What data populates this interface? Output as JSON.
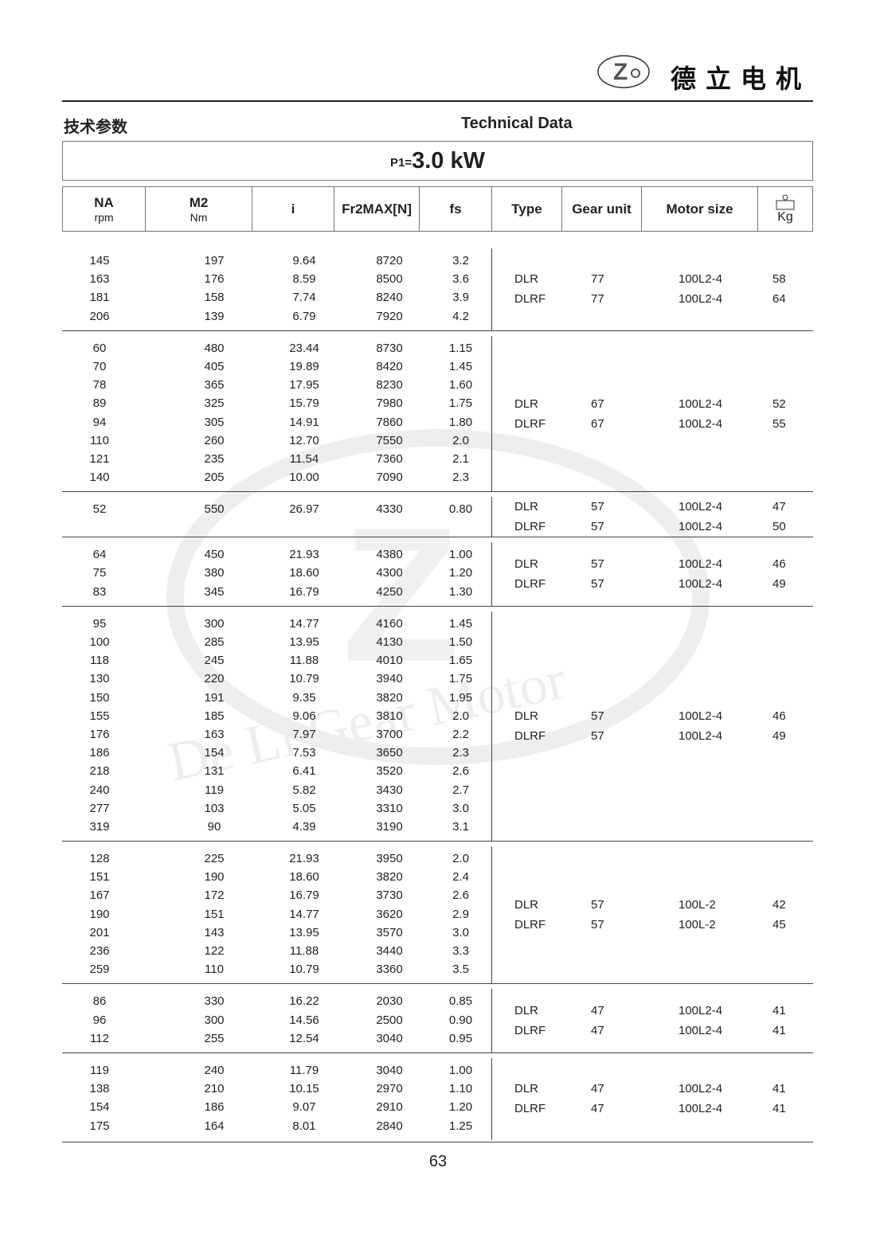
{
  "header": {
    "brand": "德立电机",
    "logo_text": "De Li Gear Motor",
    "title_cn": "技术参数",
    "title_en": "Technical Data"
  },
  "power": {
    "label": "P1=",
    "value": "3.0 kW"
  },
  "columns": [
    {
      "label": "NA",
      "unit": "rpm"
    },
    {
      "label": "M2",
      "unit": "Nm"
    },
    {
      "label": "i"
    },
    {
      "label": "Fr2MAX[N]"
    },
    {
      "label": "fs"
    },
    {
      "label": "Type"
    },
    {
      "label": "Gear unit"
    },
    {
      "label": "Motor size"
    },
    {
      "label": "Kg"
    }
  ],
  "groups": [
    {
      "rows": [
        [
          "145",
          "197",
          "9.64",
          "8720",
          "3.2"
        ],
        [
          "163",
          "176",
          "8.59",
          "8500",
          "3.6"
        ],
        [
          "181",
          "158",
          "7.74",
          "8240",
          "3.9"
        ],
        [
          "206",
          "139",
          "6.79",
          "7920",
          "4.2"
        ]
      ],
      "units": [
        [
          "DLR",
          "77",
          "100L2-4",
          "58"
        ],
        [
          "DLRF",
          "77",
          "100L2-4",
          "64"
        ]
      ]
    },
    {
      "rows": [
        [
          "60",
          "480",
          "23.44",
          "8730",
          "1.15"
        ],
        [
          "70",
          "405",
          "19.89",
          "8420",
          "1.45"
        ],
        [
          "78",
          "365",
          "17.95",
          "8230",
          "1.60"
        ],
        [
          "89",
          "325",
          "15.79",
          "7980",
          "1.75"
        ],
        [
          "94",
          "305",
          "14.91",
          "7860",
          "1.80"
        ],
        [
          "110",
          "260",
          "12.70",
          "7550",
          "2.0"
        ],
        [
          "121",
          "235",
          "11.54",
          "7360",
          "2.1"
        ],
        [
          "140",
          "205",
          "10.00",
          "7090",
          "2.3"
        ]
      ],
      "units": [
        [
          "DLR",
          "67",
          "100L2-4",
          "52"
        ],
        [
          "DLRF",
          "67",
          "100L2-4",
          "55"
        ]
      ]
    },
    {
      "rows": [
        [
          "52",
          "550",
          "26.97",
          "4330",
          "0.80"
        ]
      ],
      "units": [
        [
          "DLR",
          "57",
          "100L2-4",
          "47"
        ],
        [
          "DLRF",
          "57",
          "100L2-4",
          "50"
        ]
      ]
    },
    {
      "rows": [
        [
          "64",
          "450",
          "21.93",
          "4380",
          "1.00"
        ],
        [
          "75",
          "380",
          "18.60",
          "4300",
          "1.20"
        ],
        [
          "83",
          "345",
          "16.79",
          "4250",
          "1.30"
        ]
      ],
      "units": [
        [
          "DLR",
          "57",
          "100L2-4",
          "46"
        ],
        [
          "DLRF",
          "57",
          "100L2-4",
          "49"
        ]
      ]
    },
    {
      "rows": [
        [
          "95",
          "300",
          "14.77",
          "4160",
          "1.45"
        ],
        [
          "100",
          "285",
          "13.95",
          "4130",
          "1.50"
        ],
        [
          "118",
          "245",
          "11.88",
          "4010",
          "1.65"
        ],
        [
          "130",
          "220",
          "10.79",
          "3940",
          "1.75"
        ],
        [
          "150",
          "191",
          "9.35",
          "3820",
          "1.95"
        ],
        [
          "155",
          "185",
          "9.06",
          "3810",
          "2.0"
        ],
        [
          "176",
          "163",
          "7.97",
          "3700",
          "2.2"
        ],
        [
          "186",
          "154",
          "7.53",
          "3650",
          "2.3"
        ],
        [
          "218",
          "131",
          "6.41",
          "3520",
          "2.6"
        ],
        [
          "240",
          "119",
          "5.82",
          "3430",
          "2.7"
        ],
        [
          "277",
          "103",
          "5.05",
          "3310",
          "3.0"
        ],
        [
          "319",
          "90",
          "4.39",
          "3190",
          "3.1"
        ]
      ],
      "units": [
        [
          "DLR",
          "57",
          "100L2-4",
          "46"
        ],
        [
          "DLRF",
          "57",
          "100L2-4",
          "49"
        ]
      ]
    },
    {
      "rows": [
        [
          "128",
          "225",
          "21.93",
          "3950",
          "2.0"
        ],
        [
          "151",
          "190",
          "18.60",
          "3820",
          "2.4"
        ],
        [
          "167",
          "172",
          "16.79",
          "3730",
          "2.6"
        ],
        [
          "190",
          "151",
          "14.77",
          "3620",
          "2.9"
        ],
        [
          "201",
          "143",
          "13.95",
          "3570",
          "3.0"
        ],
        [
          "236",
          "122",
          "11.88",
          "3440",
          "3.3"
        ],
        [
          "259",
          "110",
          "10.79",
          "3360",
          "3.5"
        ]
      ],
      "units": [
        [
          "DLR",
          "57",
          "100L-2",
          "42"
        ],
        [
          "DLRF",
          "57",
          "100L-2",
          "45"
        ]
      ]
    },
    {
      "rows": [
        [
          "86",
          "330",
          "16.22",
          "2030",
          "0.85"
        ],
        [
          "96",
          "300",
          "14.56",
          "2500",
          "0.90"
        ],
        [
          "112",
          "255",
          "12.54",
          "3040",
          "0.95"
        ]
      ],
      "units": [
        [
          "DLR",
          "47",
          "100L2-4",
          "41"
        ],
        [
          "DLRF",
          "47",
          "100L2-4",
          "41"
        ]
      ]
    },
    {
      "rows": [
        [
          "119",
          "240",
          "11.79",
          "3040",
          "1.00"
        ],
        [
          "138",
          "210",
          "10.15",
          "2970",
          "1.10"
        ],
        [
          "154",
          "186",
          "9.07",
          "2910",
          "1.20"
        ],
        [
          "175",
          "164",
          "8.01",
          "2840",
          "1.25"
        ]
      ],
      "units": [
        [
          "DLR",
          "47",
          "100L2-4",
          "41"
        ],
        [
          "DLRF",
          "47",
          "100L2-4",
          "41"
        ]
      ]
    }
  ],
  "footer": {
    "page_number": "63"
  }
}
